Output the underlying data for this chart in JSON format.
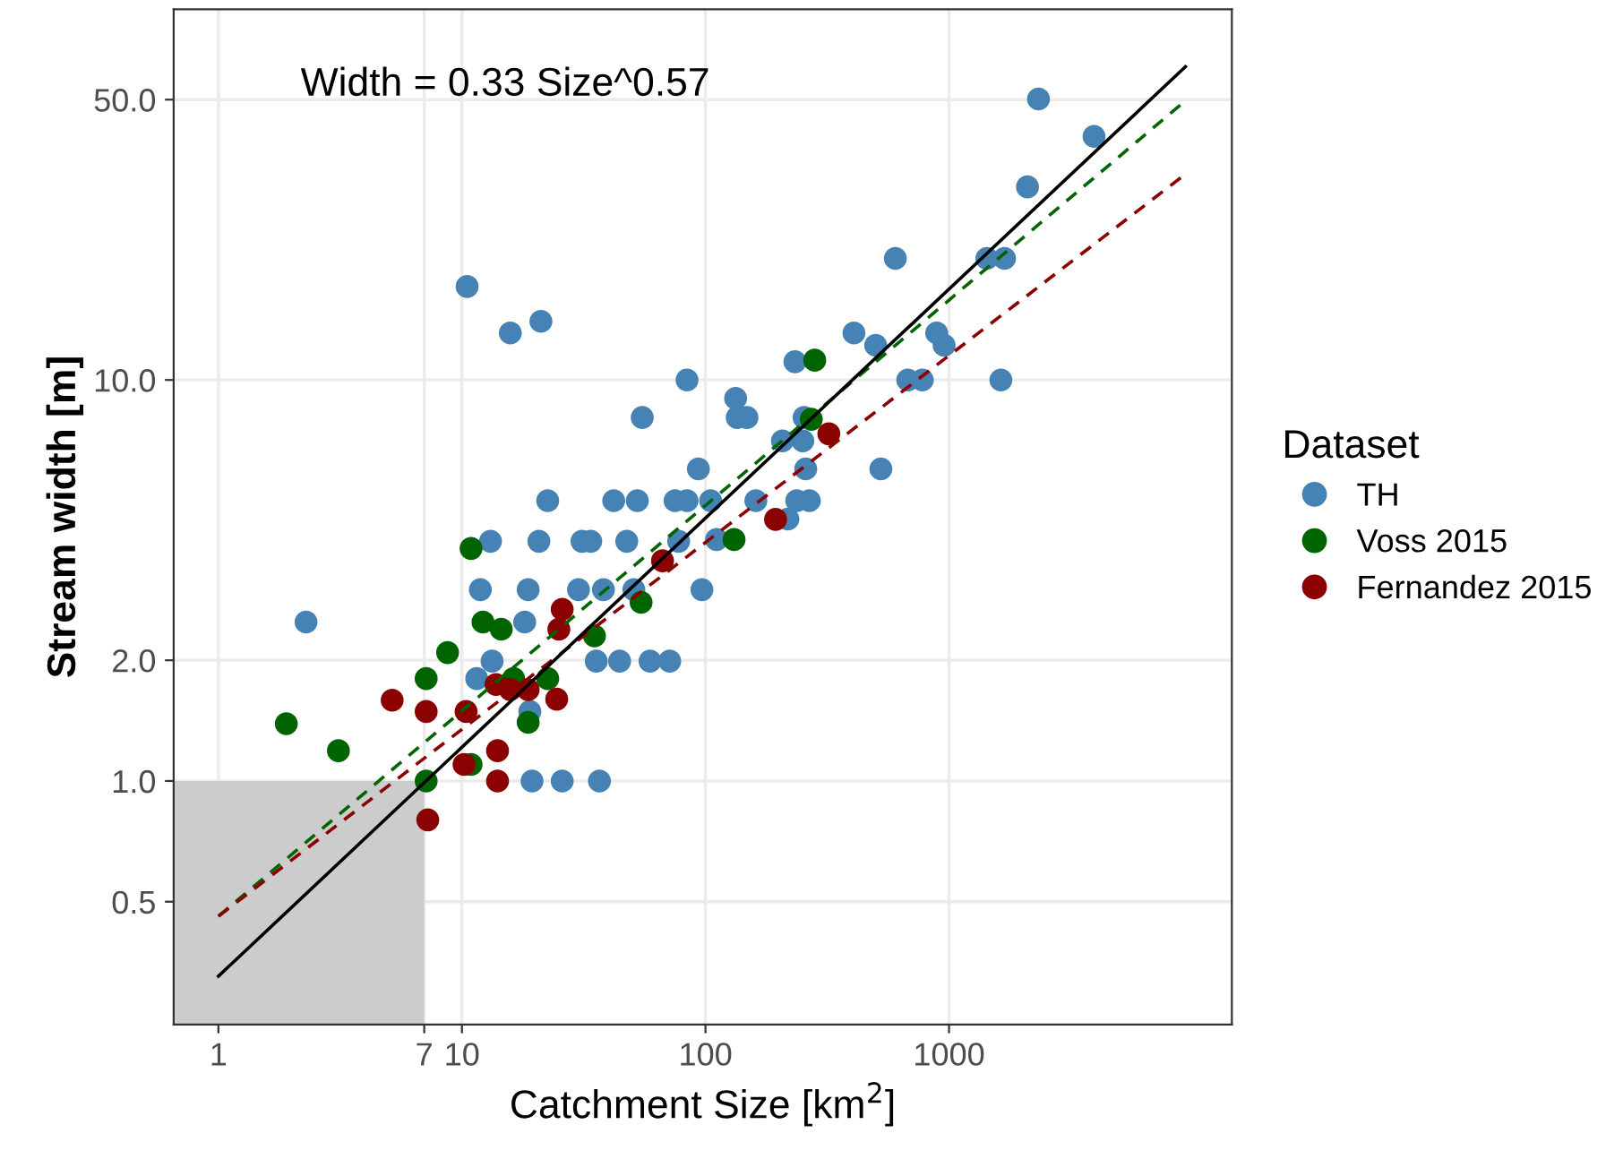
{
  "chart_data": {
    "type": "scatter",
    "xlabel": "Catchment Size [km$^{2}$]",
    "ylabel": "Stream width [m]",
    "legend_title": "Dataset",
    "annotations": [
      "Width = 0.33 Size^0.57"
    ],
    "log": "xy",
    "grid": true,
    "legend": "right",
    "xlim": [
      0.655,
      14500
    ],
    "ylim": [
      0.247,
      84
    ],
    "xticks": [
      1,
      7,
      10,
      100,
      1000
    ],
    "yticks": [
      0.5,
      {
        "value": 1,
        "label": "1.0"
      },
      {
        "value": 2,
        "label": "2.0"
      },
      {
        "value": 10,
        "label": "10.0"
      },
      {
        "value": 50,
        "label": "50.0"
      }
    ],
    "series": [
      {
        "type": "area",
        "color": "#cccccc",
        "x": [
          0.655,
          7
        ],
        "values": [
          1,
          1
        ]
      },
      {
        "name": "TH",
        "color": "#4682b4",
        "marker": "circle",
        "x": [
          10.5,
          15.8,
          21.1,
          84,
          55,
          93.5,
          22.5,
          42,
          52.5,
          75,
          84,
          13.1,
          20.7,
          31.1,
          33.8,
          47.5,
          77.6,
          11.9,
          18.7,
          30.1,
          38.1,
          50.8,
          96.7,
          18.1,
          2.29,
          13.3,
          35.6,
          44.4,
          59.2,
          71.3,
          11.5,
          19.0,
          19.4,
          25.8,
          36.7,
          2330,
          3940,
          2100,
          602,
          1430,
          1690,
          407,
          500,
          890,
          955,
          233,
          677,
          777,
          1633,
          133,
          135,
          148,
          254,
          207,
          251,
          258,
          525,
          105,
          161,
          237,
          267,
          218,
          111
        ],
        "values": [
          17.1,
          13.1,
          14.0,
          10,
          8.06,
          6.0,
          5.0,
          5.0,
          5.0,
          5.0,
          5.0,
          3.96,
          3.96,
          3.96,
          3.96,
          3.96,
          3.96,
          3.0,
          3.0,
          3.0,
          3.0,
          3.0,
          3.0,
          2.49,
          2.49,
          1.99,
          1.99,
          1.99,
          1.99,
          1.99,
          1.8,
          1.49,
          1.0,
          1.0,
          1.0,
          50.2,
          40.5,
          30.3,
          20.1,
          20.1,
          20.1,
          13.1,
          12.2,
          13.1,
          12.2,
          11.1,
          10,
          10,
          10,
          9.0,
          8.06,
          8.06,
          8.06,
          7.05,
          7.05,
          6.0,
          6.0,
          5.0,
          5.0,
          5.0,
          5.0,
          4.5,
          4.0
        ]
      },
      {
        "name": "Voss 2015",
        "color": "#006400",
        "marker": "circle",
        "x": [
          10.9,
          54.4,
          12.2,
          14.5,
          35,
          8.73,
          7.13,
          16.3,
          22.5,
          18.7,
          1.9,
          3.11,
          10.9,
          7.13,
          281,
          272,
          131
        ],
        "values": [
          3.8,
          2.79,
          2.49,
          2.39,
          2.3,
          2.09,
          1.8,
          1.8,
          1.8,
          1.4,
          1.39,
          1.19,
          1.1,
          1.0,
          11.2,
          7.98,
          4.0
        ]
      },
      {
        "name": "Fernandez 2015",
        "color": "#8b0000",
        "marker": "circle",
        "x": [
          66.6,
          25.8,
          25,
          13.8,
          15.8,
          18.7,
          24.5,
          5.17,
          7.13,
          10.4,
          14.0,
          10.2,
          14.0,
          7.24,
          321,
          194
        ],
        "values": [
          3.54,
          2.68,
          2.39,
          1.74,
          1.69,
          1.69,
          1.6,
          1.59,
          1.49,
          1.49,
          1.19,
          1.1,
          1.0,
          0.8,
          7.34,
          4.49
        ]
      },
      {
        "type": "line",
        "color": "#006400",
        "line_style": "dashed",
        "x": [
          1,
          9350
        ],
        "values": [
          0.46,
          49.7
        ]
      },
      {
        "type": "line",
        "color": "#8b0000",
        "line_style": "dashed",
        "x": [
          1,
          9350
        ],
        "values": [
          0.46,
          32.6
        ]
      },
      {
        "type": "line",
        "color": "#000000",
        "line_style": "solid",
        "x": [
          1,
          9350
        ],
        "values": [
          0.326,
          60.4
        ]
      }
    ]
  }
}
